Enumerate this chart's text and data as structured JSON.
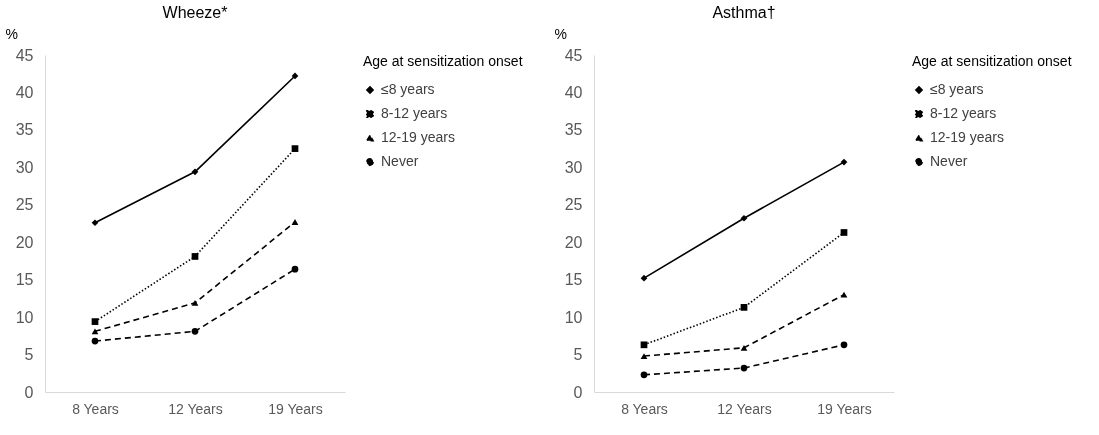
{
  "chart_data": [
    {
      "type": "line",
      "title": "Wheeze*",
      "ylabel": "%",
      "legend_title": "Age at sensitization onset",
      "legend": "right",
      "categories": [
        "8 Years",
        "12 Years",
        "19 Years"
      ],
      "ylim": [
        0,
        45
      ],
      "yticks": [
        0,
        5,
        10,
        15,
        20,
        25,
        30,
        35,
        40,
        45
      ],
      "series": [
        {
          "name": "≤8 years",
          "color": "#000000",
          "marker": "diamond",
          "line_style": "solid",
          "values": [
            22.6,
            29.4,
            42.2
          ]
        },
        {
          "name": "8-12 years",
          "color": "#000000",
          "marker": "square",
          "line_style": "dotted",
          "values": [
            9.4,
            18.1,
            32.5
          ]
        },
        {
          "name": "12-19 years",
          "color": "#000000",
          "marker": "triangle",
          "line_style": "dashed",
          "values": [
            8.1,
            11.9,
            22.7
          ]
        },
        {
          "name": "Never",
          "color": "#000000",
          "marker": "circle",
          "line_style": "dashed",
          "values": [
            6.8,
            8.1,
            16.4
          ]
        }
      ]
    },
    {
      "type": "line",
      "title": "Asthma†",
      "ylabel": "%",
      "legend_title": "Age at sensitization onset",
      "legend": "right",
      "categories": [
        "8 Years",
        "12 Years",
        "19 Years"
      ],
      "ylim": [
        0,
        45
      ],
      "yticks": [
        0,
        5,
        10,
        15,
        20,
        25,
        30,
        35,
        40,
        45
      ],
      "series": [
        {
          "name": "≤8 years",
          "color": "#000000",
          "marker": "diamond",
          "line_style": "solid",
          "values": [
            15.2,
            23.2,
            30.7
          ]
        },
        {
          "name": "8-12 years",
          "color": "#000000",
          "marker": "square",
          "line_style": "dotted",
          "values": [
            6.3,
            11.3,
            21.3
          ]
        },
        {
          "name": "12-19 years",
          "color": "#000000",
          "marker": "triangle",
          "line_style": "dashed",
          "values": [
            4.8,
            5.9,
            13.0
          ]
        },
        {
          "name": "Never",
          "color": "#000000",
          "marker": "circle",
          "line_style": "dashed",
          "values": [
            2.3,
            3.2,
            6.3
          ]
        }
      ]
    }
  ]
}
